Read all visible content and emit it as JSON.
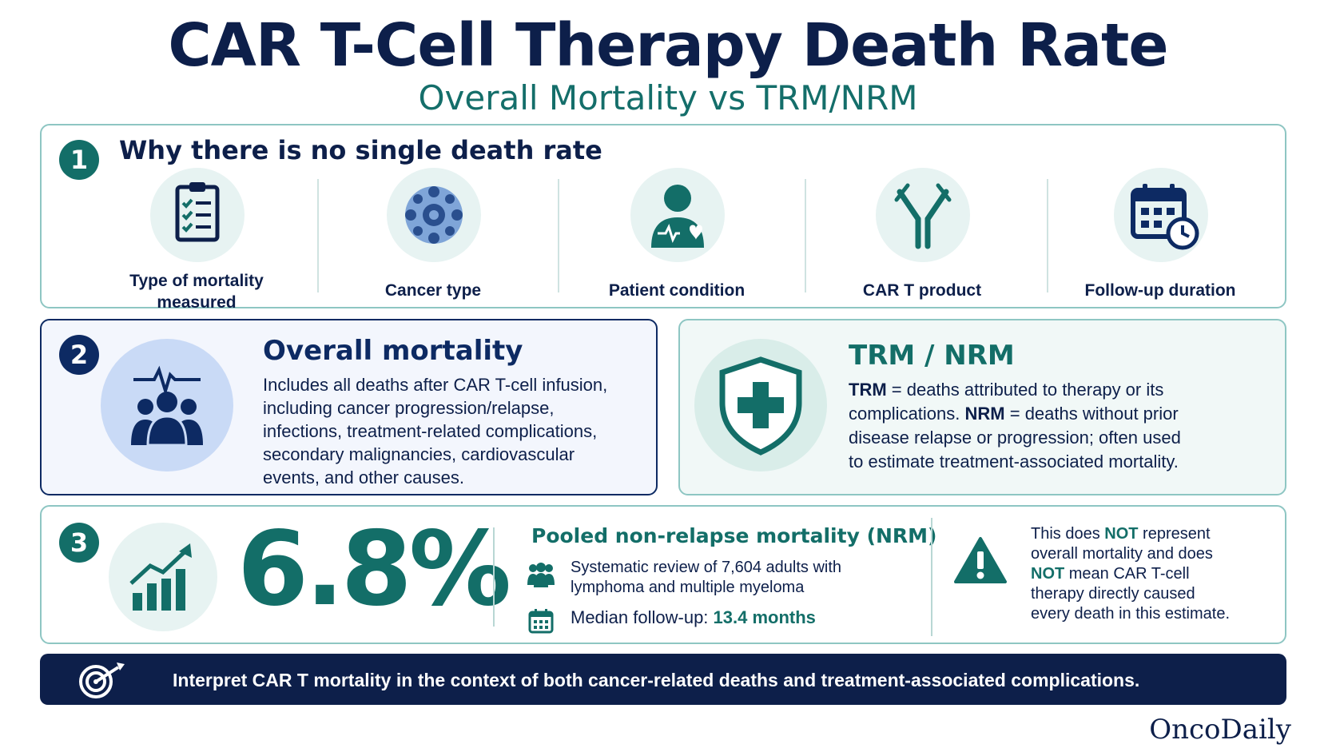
{
  "header": {
    "title": "CAR T-Cell Therapy Death Rate",
    "subtitle": "Overall Mortality vs TRM/NRM"
  },
  "section1": {
    "number": "1",
    "title": "Why there is no single death rate",
    "factors": [
      {
        "label_line1": "Type of mortality",
        "label_line2": "measured",
        "icon": "checklist-icon"
      },
      {
        "label": "Cancer type",
        "icon": "cancer-cell-icon"
      },
      {
        "label": "Patient condition",
        "icon": "patient-heart-icon"
      },
      {
        "label": "CAR T product",
        "icon": "car-receptor-icon"
      },
      {
        "label": "Follow-up duration",
        "icon": "calendar-clock-icon"
      }
    ]
  },
  "section2": {
    "number": "2",
    "overall": {
      "title": "Overall mortality",
      "lines": [
        "Includes all deaths after CAR T-cell infusion,",
        "including cancer progression/relapse,",
        "infections, treatment-related complications,",
        "secondary malignancies, cardiovascular",
        "events, and other causes."
      ]
    },
    "trm": {
      "title": "TRM / NRM",
      "trm_term": "TRM",
      "trm_def_a": " = deaths attributed to therapy or its",
      "trm_def_b": "complications. ",
      "nrm_term": "NRM",
      "nrm_def_a": " = deaths without prior",
      "line3": "disease relapse or progression; often used",
      "line4": "to estimate treatment-associated mortality."
    }
  },
  "section3": {
    "number": "3",
    "stat": "6.8%",
    "heading": "Pooled non-relapse mortality (NRM)",
    "review_line1": "Systematic review of 7,604 adults with",
    "review_line2": "lymphoma and multiple myeloma",
    "followup_label": "Median follow-up: ",
    "followup_value": "13.4 months",
    "note_a": "This does ",
    "note_not1": "NOT",
    "note_b": " represent",
    "note_line2": "overall mortality and does",
    "note_not2": "NOT",
    "note_c": " mean CAR T-cell",
    "note_line4": "therapy directly caused",
    "note_line5": "every death in this estimate."
  },
  "banner": {
    "text": "Interpret CAR T mortality in the context of both cancer-related deaths and treatment-associated complications."
  },
  "brand": "OncoDaily",
  "colors": {
    "navy": "#0d1f4a",
    "teal": "#136e68",
    "light_teal": "#e7f3f2",
    "light_blue": "#c9daf6"
  }
}
